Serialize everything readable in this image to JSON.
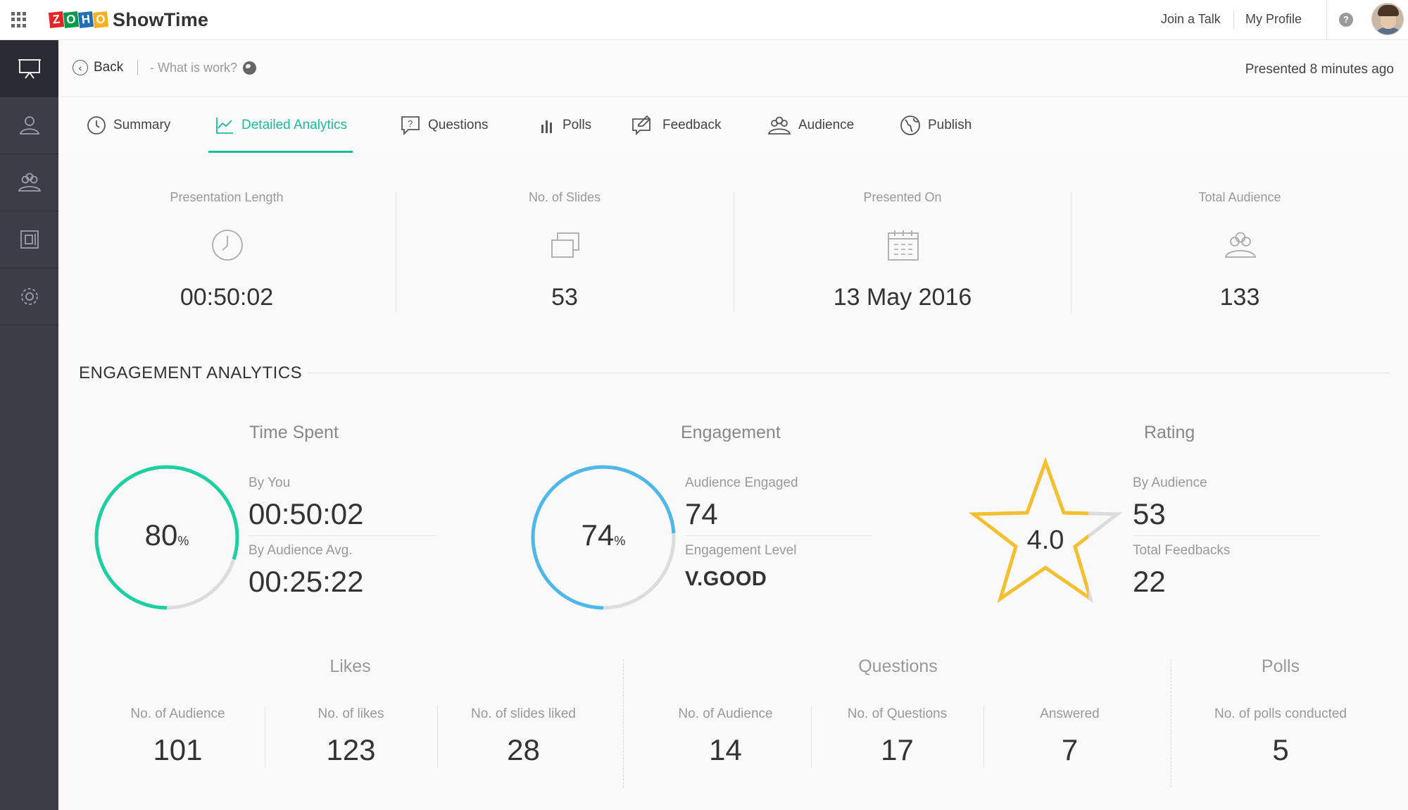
{
  "app": {
    "brand_logo": "ZOHO",
    "brand_name": "ShowTime"
  },
  "topbar": {
    "join_label": "Join a Talk",
    "profile_label": "My Profile",
    "help_label": "?"
  },
  "subheader": {
    "back_label": "Back",
    "talk_title": "- What is work?",
    "presented_label": "Presented 8 minutes ago"
  },
  "tabs": [
    {
      "label": "Summary",
      "icon": "clock-icon"
    },
    {
      "label": "Detailed Analytics",
      "icon": "analytics-icon",
      "active": true
    },
    {
      "label": "Questions",
      "icon": "question-icon"
    },
    {
      "label": "Polls",
      "icon": "bar-chart-icon"
    },
    {
      "label": "Feedback",
      "icon": "feedback-icon"
    },
    {
      "label": "Audience",
      "icon": "audience-icon"
    },
    {
      "label": "Publish",
      "icon": "globe-icon"
    }
  ],
  "stats": [
    {
      "label": "Presentation Length",
      "value": "00:50:02",
      "icon": "clock-icon"
    },
    {
      "label": "No. of Slides",
      "value": "53",
      "icon": "slides-icon"
    },
    {
      "label": "Presented On",
      "value": "13 May 2016",
      "icon": "calendar-icon"
    },
    {
      "label": "Total Audience",
      "value": "133",
      "icon": "audience-icon"
    }
  ],
  "engagement": {
    "section_title": "ENGAGEMENT ANALYTICS",
    "time_spent": {
      "title": "Time Spent",
      "percent": "80",
      "percent_unit": "%",
      "fraction": 0.8,
      "color": "#1dd0a2",
      "by_you_label": "By You",
      "by_you_value": "00:50:02",
      "avg_label": "By Audience Avg.",
      "avg_value": "00:25:22"
    },
    "engagement": {
      "title": "Engagement",
      "percent": "74",
      "percent_unit": "%",
      "fraction": 0.74,
      "color": "#4fb8ea",
      "engaged_label": "Audience Engaged",
      "engaged_value": "74",
      "level_label": "Engagement Level",
      "level_value": "V.GOOD"
    },
    "rating": {
      "title": "Rating",
      "value": "4.0",
      "fraction": 0.8,
      "color": "#f5c02f",
      "by_audience_label": "By Audience",
      "by_audience_value": "53",
      "feedbacks_label": "Total Feedbacks",
      "feedbacks_value": "22"
    }
  },
  "likes": {
    "title": "Likes",
    "metrics": [
      {
        "label": "No. of Audience",
        "value": "101"
      },
      {
        "label": "No. of likes",
        "value": "123"
      },
      {
        "label": "No. of slides liked",
        "value": "28"
      }
    ]
  },
  "questions": {
    "title": "Questions",
    "metrics": [
      {
        "label": "No. of Audience",
        "value": "14"
      },
      {
        "label": "No. of Questions",
        "value": "17"
      },
      {
        "label": "Answered",
        "value": "7"
      }
    ]
  },
  "polls": {
    "title": "Polls",
    "metrics": [
      {
        "label": "No. of polls conducted",
        "value": "5"
      }
    ]
  }
}
